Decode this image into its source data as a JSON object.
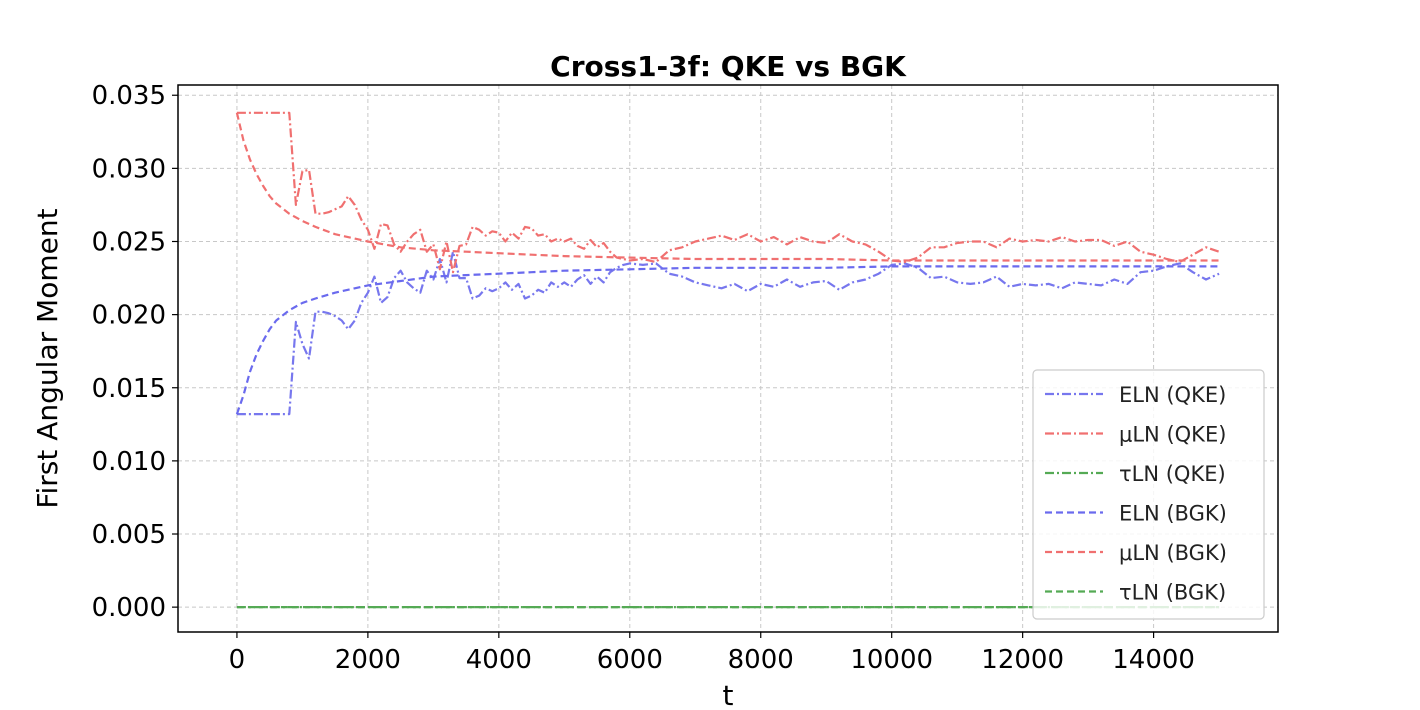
{
  "chart_data": {
    "type": "line",
    "title": "Cross1-3f: QKE vs BGK",
    "xlabel": "t",
    "ylabel": "First Angular Moment",
    "xlim": [
      -900,
      15900
    ],
    "ylim": [
      -0.0017,
      0.0357
    ],
    "xticks": [
      0,
      2000,
      4000,
      6000,
      8000,
      10000,
      12000,
      14000
    ],
    "xtick_labels": [
      "0",
      "2000",
      "4000",
      "6000",
      "8000",
      "10000",
      "12000",
      "14000"
    ],
    "yticks": [
      0.0,
      0.005,
      0.01,
      0.015,
      0.02,
      0.025,
      0.03,
      0.035
    ],
    "ytick_labels": [
      "0.000",
      "0.005",
      "0.010",
      "0.015",
      "0.020",
      "0.025",
      "0.030",
      "0.035"
    ],
    "grid": true,
    "legend_position": "lower-right",
    "series": [
      {
        "name": "ELN (QKE)",
        "label": "ELN (QKE)",
        "color": "#7777ee",
        "dash": "dashdot",
        "x": [
          0,
          150,
          300,
          450,
          600,
          750,
          800,
          900,
          1000,
          1100,
          1200,
          1300,
          1400,
          1500,
          1600,
          1700,
          1800,
          1900,
          2000,
          2100,
          2200,
          2300,
          2400,
          2500,
          2600,
          2700,
          2800,
          2900,
          3000,
          3100,
          3200,
          3300,
          3400,
          3500,
          3600,
          3700,
          3800,
          3900,
          4000,
          4100,
          4200,
          4300,
          4400,
          4500,
          4600,
          4700,
          4800,
          4900,
          5000,
          5100,
          5200,
          5300,
          5400,
          5500,
          5600,
          5700,
          5800,
          5900,
          6000,
          6200,
          6400,
          6600,
          6800,
          7000,
          7200,
          7400,
          7600,
          7800,
          8000,
          8200,
          8400,
          8600,
          8800,
          9000,
          9200,
          9400,
          9600,
          9800,
          10000,
          10200,
          10400,
          10600,
          10800,
          11000,
          11200,
          11400,
          11600,
          11800,
          12000,
          12200,
          12400,
          12600,
          12800,
          13000,
          13200,
          13400,
          13600,
          13800,
          14000,
          14200,
          14400,
          14600,
          14800,
          15000
        ],
        "y": [
          0.0132,
          0.0132,
          0.0132,
          0.0132,
          0.0132,
          0.0132,
          0.0132,
          0.0195,
          0.018,
          0.017,
          0.0202,
          0.0202,
          0.0201,
          0.0199,
          0.0196,
          0.019,
          0.0196,
          0.0208,
          0.0215,
          0.0226,
          0.0208,
          0.0212,
          0.0225,
          0.023,
          0.0222,
          0.0218,
          0.0215,
          0.023,
          0.0224,
          0.0238,
          0.0222,
          0.0243,
          0.0225,
          0.0225,
          0.0211,
          0.0213,
          0.0218,
          0.0216,
          0.0218,
          0.0222,
          0.0217,
          0.0221,
          0.0211,
          0.0213,
          0.0217,
          0.0215,
          0.0222,
          0.0219,
          0.0222,
          0.0219,
          0.0224,
          0.0227,
          0.0221,
          0.0226,
          0.0222,
          0.0229,
          0.0232,
          0.0234,
          0.0235,
          0.0234,
          0.0235,
          0.0228,
          0.0226,
          0.0222,
          0.022,
          0.0218,
          0.0221,
          0.0216,
          0.0221,
          0.0219,
          0.0224,
          0.0219,
          0.0222,
          0.0223,
          0.0217,
          0.0222,
          0.0224,
          0.0228,
          0.0234,
          0.0235,
          0.0232,
          0.0225,
          0.0226,
          0.0222,
          0.0221,
          0.0222,
          0.0226,
          0.0219,
          0.0221,
          0.022,
          0.0221,
          0.0218,
          0.0222,
          0.0221,
          0.022,
          0.0224,
          0.0221,
          0.0229,
          0.023,
          0.0233,
          0.0235,
          0.0229,
          0.0224,
          0.0228
        ]
      },
      {
        "name": "μLN (QKE)",
        "label": "μLN (QKE)",
        "color": "#f07070",
        "dash": "dashdot",
        "x": [
          0,
          150,
          300,
          450,
          600,
          750,
          800,
          900,
          1000,
          1100,
          1200,
          1300,
          1400,
          1500,
          1600,
          1700,
          1800,
          1900,
          2000,
          2100,
          2200,
          2300,
          2400,
          2500,
          2600,
          2700,
          2800,
          2900,
          3000,
          3100,
          3200,
          3300,
          3400,
          3500,
          3600,
          3700,
          3800,
          3900,
          4000,
          4100,
          4200,
          4300,
          4400,
          4500,
          4600,
          4700,
          4800,
          4900,
          5000,
          5100,
          5200,
          5300,
          5400,
          5500,
          5600,
          5700,
          5800,
          5900,
          6000,
          6200,
          6400,
          6600,
          6800,
          7000,
          7200,
          7400,
          7600,
          7800,
          8000,
          8200,
          8400,
          8600,
          8800,
          9000,
          9200,
          9400,
          9600,
          9800,
          10000,
          10200,
          10400,
          10600,
          10800,
          11000,
          11200,
          11400,
          11600,
          11800,
          12000,
          12200,
          12400,
          12600,
          12800,
          13000,
          13200,
          13400,
          13600,
          13800,
          14000,
          14200,
          14400,
          14600,
          14800,
          15000
        ],
        "y": [
          0.0338,
          0.0338,
          0.0338,
          0.0338,
          0.0338,
          0.0338,
          0.0338,
          0.0275,
          0.0298,
          0.0299,
          0.0269,
          0.0269,
          0.027,
          0.0272,
          0.0274,
          0.0281,
          0.0275,
          0.0265,
          0.0258,
          0.0245,
          0.0262,
          0.0261,
          0.0248,
          0.0243,
          0.025,
          0.0255,
          0.0258,
          0.0243,
          0.0248,
          0.0231,
          0.025,
          0.0229,
          0.0247,
          0.0248,
          0.026,
          0.0258,
          0.0254,
          0.0257,
          0.0256,
          0.025,
          0.0256,
          0.0252,
          0.026,
          0.0259,
          0.0254,
          0.0255,
          0.025,
          0.0252,
          0.025,
          0.0252,
          0.0247,
          0.0245,
          0.0251,
          0.0246,
          0.0249,
          0.0243,
          0.0239,
          0.0238,
          0.0237,
          0.0238,
          0.0236,
          0.0244,
          0.0246,
          0.025,
          0.0252,
          0.0254,
          0.0251,
          0.0255,
          0.025,
          0.0253,
          0.0248,
          0.0253,
          0.025,
          0.0249,
          0.0255,
          0.025,
          0.0248,
          0.0243,
          0.0237,
          0.0236,
          0.0239,
          0.0246,
          0.0246,
          0.0249,
          0.025,
          0.025,
          0.0246,
          0.0252,
          0.025,
          0.0251,
          0.025,
          0.0253,
          0.025,
          0.0251,
          0.0251,
          0.0247,
          0.025,
          0.0243,
          0.0241,
          0.0238,
          0.0236,
          0.0241,
          0.0246,
          0.0243
        ]
      },
      {
        "name": "τLN (QKE)",
        "label": "τLN (QKE)",
        "color": "#55aa55",
        "dash": "dashdot",
        "x": [
          0,
          15000
        ],
        "y": [
          0.0,
          0.0
        ]
      },
      {
        "name": "ELN (BGK)",
        "label": "ELN (BGK)",
        "color": "#6a6aee",
        "dash": "dashed",
        "x": [
          0,
          100,
          200,
          300,
          400,
          500,
          600,
          800,
          1000,
          1200,
          1500,
          1800,
          2000,
          2500,
          3000,
          3500,
          4000,
          4500,
          5000,
          6000,
          7000,
          8000,
          9000,
          10000,
          11000,
          12000,
          13000,
          14000,
          15000
        ],
        "y": [
          0.0132,
          0.0145,
          0.0161,
          0.0173,
          0.0182,
          0.019,
          0.0196,
          0.0203,
          0.0208,
          0.0211,
          0.0215,
          0.0218,
          0.022,
          0.0223,
          0.0226,
          0.0227,
          0.0228,
          0.0229,
          0.023,
          0.0231,
          0.0232,
          0.0232,
          0.0232,
          0.0233,
          0.0233,
          0.0233,
          0.0233,
          0.0233,
          0.0233
        ]
      },
      {
        "name": "μLN (BGK)",
        "label": "μLN (BGK)",
        "color": "#f07070",
        "dash": "dashed",
        "x": [
          0,
          100,
          200,
          300,
          400,
          500,
          600,
          800,
          1000,
          1200,
          1500,
          1800,
          2000,
          2500,
          3000,
          3500,
          4000,
          4500,
          5000,
          6000,
          7000,
          8000,
          9000,
          10000,
          11000,
          12000,
          13000,
          14000,
          15000
        ],
        "y": [
          0.0338,
          0.0319,
          0.0306,
          0.0296,
          0.0288,
          0.0281,
          0.0276,
          0.0269,
          0.0264,
          0.026,
          0.0255,
          0.0252,
          0.025,
          0.0246,
          0.0244,
          0.0243,
          0.0242,
          0.0241,
          0.024,
          0.0239,
          0.0238,
          0.0238,
          0.0238,
          0.0237,
          0.0237,
          0.0237,
          0.0237,
          0.0237,
          0.0237
        ]
      },
      {
        "name": "τLN (BGK)",
        "label": "τLN (BGK)",
        "color": "#55aa55",
        "dash": "dashed",
        "x": [
          0,
          15000
        ],
        "y": [
          0.0,
          0.0
        ]
      }
    ]
  }
}
